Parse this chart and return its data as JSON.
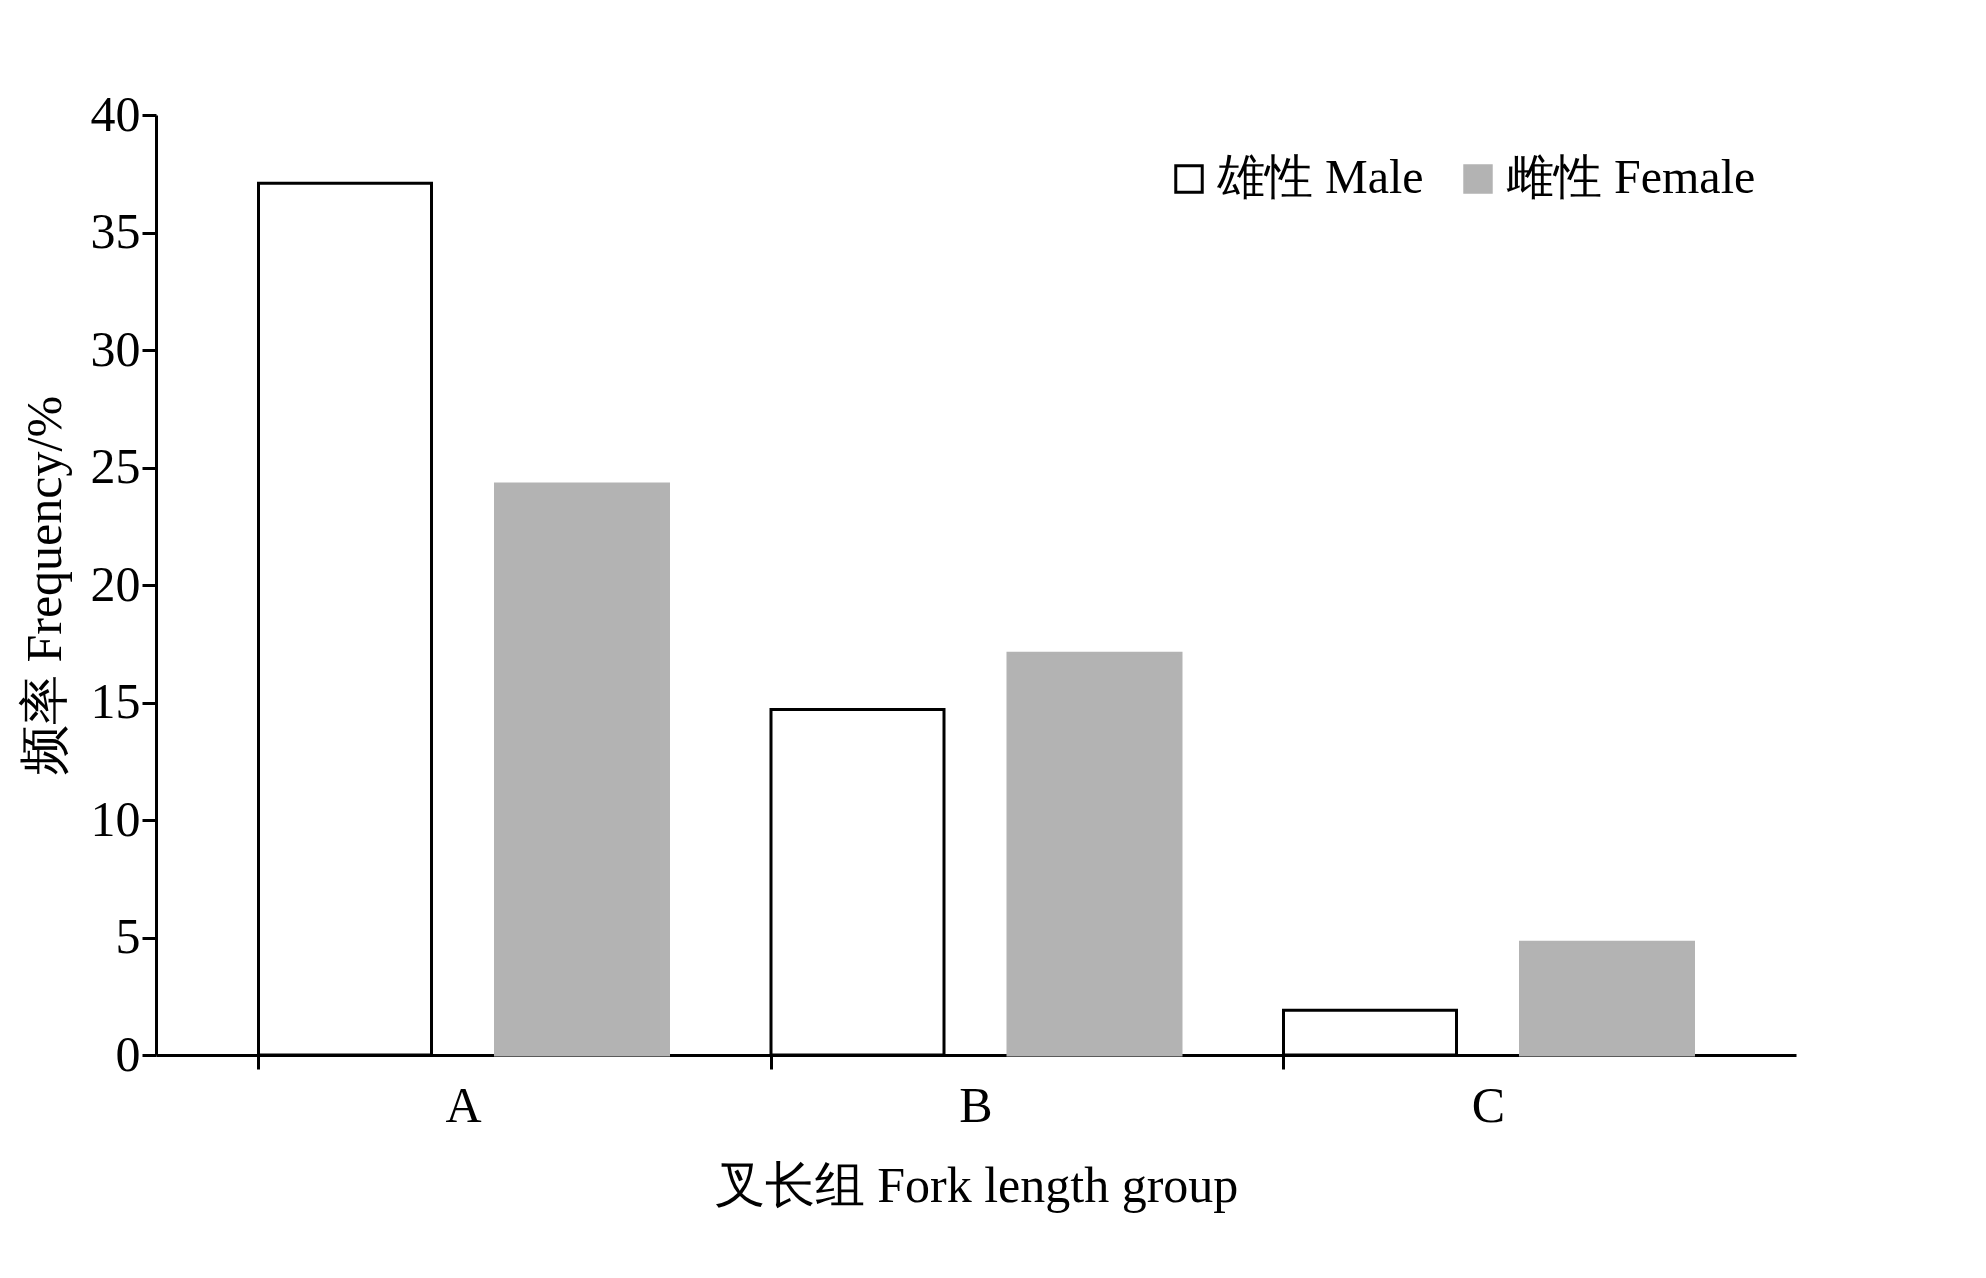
{
  "chart_data": {
    "type": "bar",
    "xlabel": "叉长组 Fork length group",
    "ylabel": "频率 Frequency/%",
    "categories": [
      "A",
      "B",
      "C"
    ],
    "series": [
      {
        "name": "雄性 Male",
        "color": "#ffffff",
        "values": [
          37.1,
          14.7,
          1.9
        ]
      },
      {
        "name": "雌性 Female",
        "color": "#b3b3b3",
        "values": [
          24.3,
          17.1,
          4.8
        ]
      }
    ],
    "ylim": [
      0,
      40
    ],
    "yticks": [
      0,
      5,
      10,
      15,
      20,
      25,
      30,
      35,
      40
    ],
    "grid": false,
    "legend": "top right"
  }
}
